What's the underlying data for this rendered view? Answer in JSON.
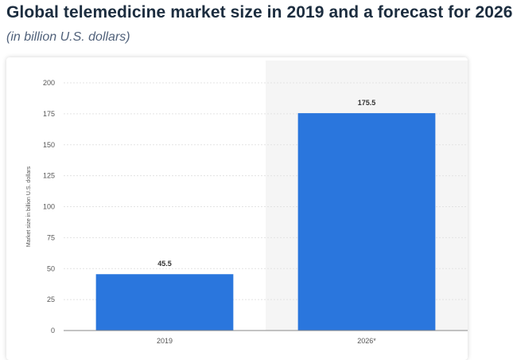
{
  "page": {
    "title": "Global telemedicine market size in 2019 and a forecast for 2026",
    "subtitle": "(in billion U.S. dollars)"
  },
  "colors": {
    "bar": "#2a76dd",
    "forecast_band": "#f5f5f5",
    "grid": "#e3e3e3",
    "axis": "#888888"
  },
  "chart_data": {
    "type": "bar",
    "categories": [
      "2019",
      "2026*"
    ],
    "values": [
      45.5,
      175.5
    ],
    "data_labels": [
      "45.5",
      "175.5"
    ],
    "ylabel": "Market size in billion U.S. dollars",
    "ylim": [
      0,
      200
    ],
    "yticks": [
      "0",
      "25",
      "50",
      "75",
      "100",
      "125",
      "150",
      "175",
      "200"
    ],
    "grid": true,
    "forecast_shading": "2026*"
  }
}
